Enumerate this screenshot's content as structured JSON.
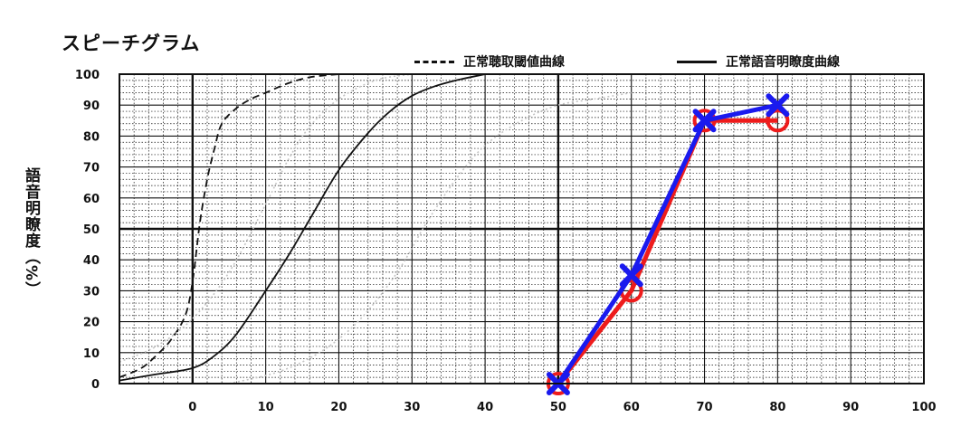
{
  "chart_data": {
    "type": "line",
    "title": "スピーチグラム",
    "ylabel": "語音明瞭度（%）",
    "xlabel": "",
    "xlim": [
      -10,
      100
    ],
    "ylim": [
      0,
      100
    ],
    "x_ticks": [
      0,
      10,
      20,
      30,
      40,
      50,
      60,
      70,
      80,
      90,
      100
    ],
    "y_ticks": [
      0,
      10,
      20,
      30,
      40,
      50,
      60,
      70,
      80,
      90,
      100
    ],
    "legend": {
      "placement": "top-right",
      "entries": [
        "正常聴取閾値曲線",
        "正常語音明瞭度曲線"
      ]
    },
    "reference_curves": [
      {
        "name": "正常聴取閾値曲線",
        "style": "dashed",
        "color": "#111111",
        "points": [
          [
            -10,
            2
          ],
          [
            -7,
            5
          ],
          [
            -5,
            9
          ],
          [
            -3,
            14
          ],
          [
            -1,
            22
          ],
          [
            0,
            33
          ],
          [
            1,
            52
          ],
          [
            2,
            66
          ],
          [
            3,
            76
          ],
          [
            4,
            84
          ],
          [
            6,
            89
          ],
          [
            8,
            92
          ],
          [
            10,
            94
          ],
          [
            13,
            97
          ],
          [
            16,
            99
          ],
          [
            20,
            100
          ]
        ]
      },
      {
        "name": "正常語音明瞭度曲線",
        "style": "solid",
        "color": "#111111",
        "points": [
          [
            -10,
            1
          ],
          [
            -5,
            3
          ],
          [
            0,
            5
          ],
          [
            3,
            9
          ],
          [
            6,
            16
          ],
          [
            10,
            30
          ],
          [
            13,
            41
          ],
          [
            16,
            53
          ],
          [
            20,
            69
          ],
          [
            24,
            81
          ],
          [
            27,
            88
          ],
          [
            30,
            93
          ],
          [
            33,
            96
          ],
          [
            36,
            98
          ],
          [
            40,
            100
          ]
        ]
      },
      {
        "name": "",
        "style": "dotted",
        "color": "#c4c4c4",
        "points": [
          [
            -10,
            7
          ],
          [
            -5,
            12
          ],
          [
            0,
            21
          ],
          [
            5,
            36
          ],
          [
            10,
            58
          ],
          [
            13,
            72
          ],
          [
            16,
            83
          ],
          [
            20,
            92
          ],
          [
            25,
            98
          ],
          [
            30,
            100
          ]
        ]
      },
      {
        "name": "",
        "style": "dotted",
        "color": "#c4c4c4",
        "points": [
          [
            5,
            0
          ],
          [
            12,
            4
          ],
          [
            18,
            11
          ],
          [
            23,
            21
          ],
          [
            28,
            36
          ],
          [
            32,
            52
          ],
          [
            36,
            66
          ],
          [
            40,
            77
          ],
          [
            45,
            85
          ],
          [
            50,
            90
          ],
          [
            55,
            92
          ],
          [
            60,
            94
          ]
        ]
      }
    ],
    "series": [
      {
        "name": "",
        "color": "#ee1c1c",
        "marker": "circle",
        "x": [
          50,
          60,
          70,
          80
        ],
        "y": [
          0,
          30,
          85,
          85
        ]
      },
      {
        "name": "",
        "color": "#1a1aee",
        "marker": "cross",
        "x": [
          50,
          60,
          70,
          80
        ],
        "y": [
          0,
          35,
          85,
          90
        ]
      }
    ],
    "grid": {
      "major": true,
      "minor": true
    }
  }
}
